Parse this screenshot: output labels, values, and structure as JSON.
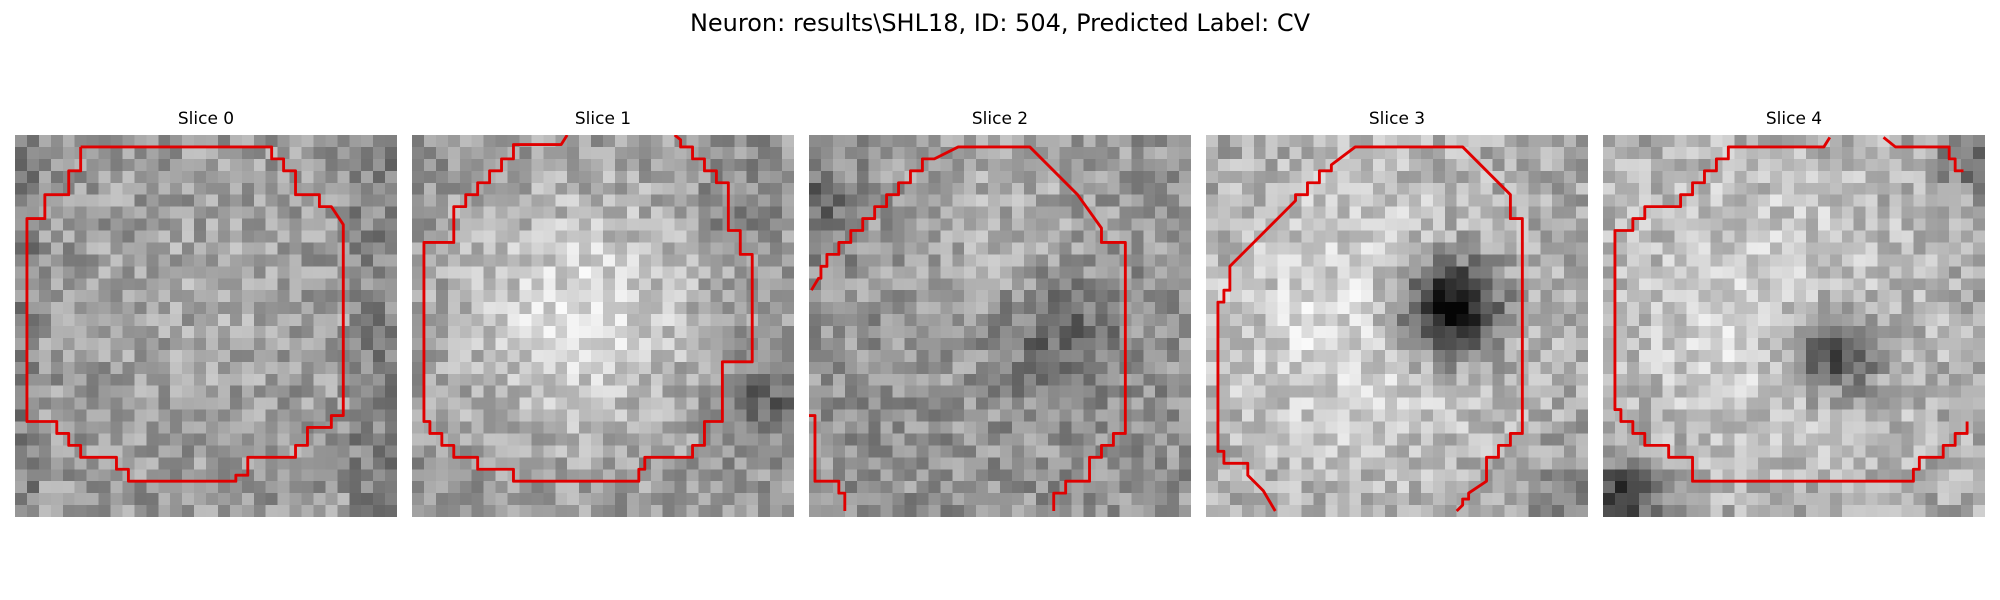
{
  "figure": {
    "title": "Neuron: results\\SHL18, ID: 504, Predicted Label: CV"
  },
  "panels": [
    {
      "title": "Slice 0"
    },
    {
      "title": "Slice 1"
    },
    {
      "title": "Slice 2"
    },
    {
      "title": "Slice 3"
    },
    {
      "title": "Slice 4"
    }
  ],
  "colors": {
    "contour": "#e00000",
    "colormap": "gray"
  }
}
